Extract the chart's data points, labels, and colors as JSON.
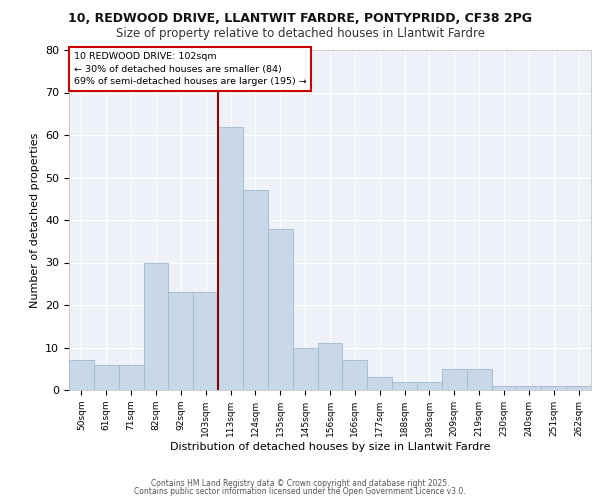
{
  "title1": "10, REDWOOD DRIVE, LLANTWIT FARDRE, PONTYPRIDD, CF38 2PG",
  "title2": "Size of property relative to detached houses in Llantwit Fardre",
  "xlabel": "Distribution of detached houses by size in Llantwit Fardre",
  "ylabel": "Number of detached properties",
  "bin_labels": [
    "50sqm",
    "61sqm",
    "71sqm",
    "82sqm",
    "92sqm",
    "103sqm",
    "113sqm",
    "124sqm",
    "135sqm",
    "145sqm",
    "156sqm",
    "166sqm",
    "177sqm",
    "188sqm",
    "198sqm",
    "209sqm",
    "219sqm",
    "230sqm",
    "240sqm",
    "251sqm",
    "262sqm"
  ],
  "values": [
    7,
    6,
    6,
    30,
    23,
    23,
    62,
    47,
    38,
    10,
    11,
    7,
    3,
    2,
    2,
    5,
    5,
    1,
    1,
    1,
    1
  ],
  "bar_color": "#c8d8e8",
  "bar_edge_color": "#a0b8cc",
  "annotation_text": "10 REDWOOD DRIVE: 102sqm\n← 30% of detached houses are smaller (84)\n69% of semi-detached houses are larger (195) →",
  "annotation_box_color": "white",
  "annotation_box_edge_color": "#cc0000",
  "redline_color": "#8b0000",
  "redline_x": 5.5,
  "ylim": [
    0,
    80
  ],
  "yticks": [
    0,
    10,
    20,
    30,
    40,
    50,
    60,
    70,
    80
  ],
  "bg_color": "#eef2f8",
  "footer1": "Contains HM Land Registry data © Crown copyright and database right 2025.",
  "footer2": "Contains public sector information licensed under the Open Government Licence v3.0.",
  "title_fontsize": 9,
  "subtitle_fontsize": 8.5
}
